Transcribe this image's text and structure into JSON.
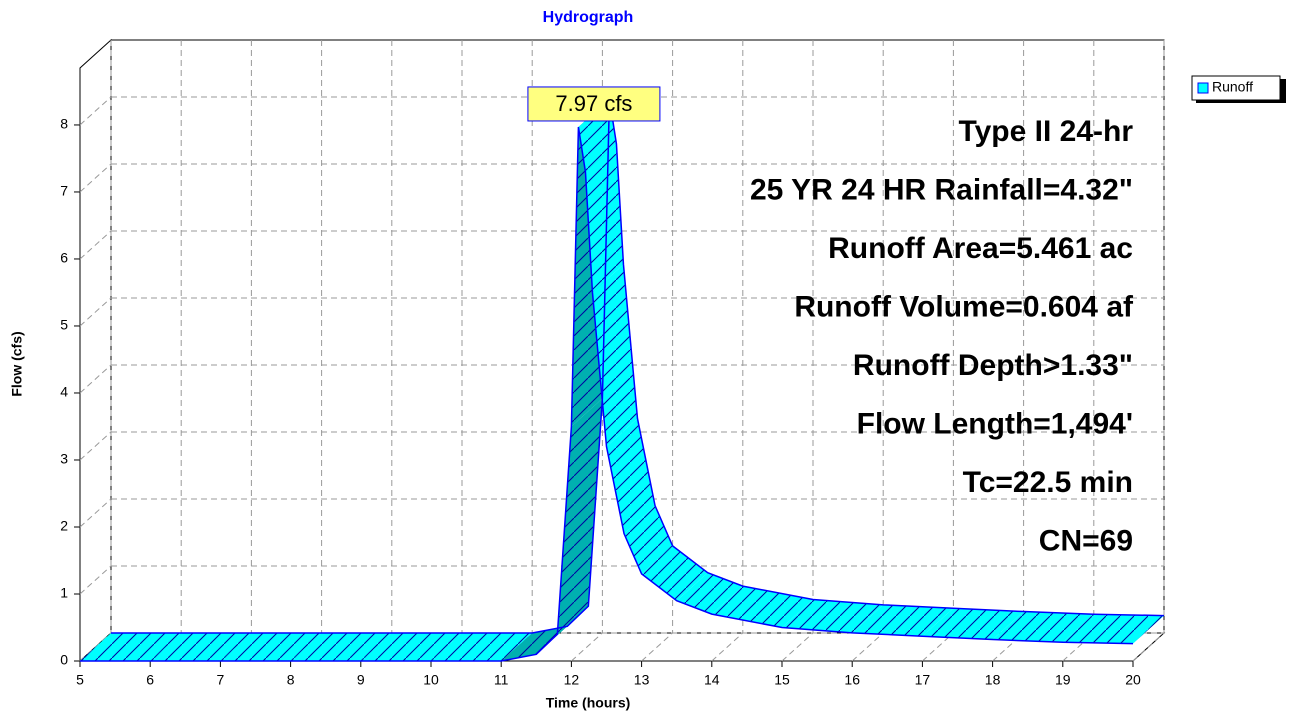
{
  "chart_data": {
    "type": "area",
    "title": "Hydrograph",
    "xlabel": "Time (hours)",
    "ylabel": "Flow (cfs)",
    "x": [
      5,
      6,
      7,
      8,
      9,
      10,
      11,
      11.5,
      11.8,
      12,
      12.1,
      12.2,
      12.3,
      12.5,
      12.75,
      13,
      13.5,
      14,
      15,
      16,
      17,
      18,
      19,
      20
    ],
    "series": [
      {
        "name": "Runoff",
        "color": "#00ffff",
        "values": [
          0,
          0,
          0,
          0,
          0,
          0,
          0,
          0.1,
          0.4,
          3.5,
          7.97,
          7.3,
          5.5,
          3.2,
          1.9,
          1.3,
          0.9,
          0.7,
          0.5,
          0.42,
          0.37,
          0.32,
          0.28,
          0.26
        ]
      }
    ],
    "peak_label": "7.97 cfs",
    "info": [
      "Type II 24-hr",
      "25 YR 24 HR Rainfall=4.32\"",
      "Runoff Area=5.461 ac",
      "Runoff Volume=0.604 af",
      "Runoff Depth>1.33\"",
      "Flow Length=1,494'",
      "Tc=22.5 min",
      "CN=69"
    ],
    "xlim": [
      5,
      20
    ],
    "xticks": [
      5,
      6,
      7,
      8,
      9,
      10,
      11,
      12,
      13,
      14,
      15,
      16,
      17,
      18,
      19,
      20
    ],
    "ylim": [
      0,
      8.85
    ],
    "yticks": [
      0,
      1,
      2,
      3,
      4,
      5,
      6,
      7,
      8
    ],
    "grid": true,
    "legend": "upper right"
  }
}
